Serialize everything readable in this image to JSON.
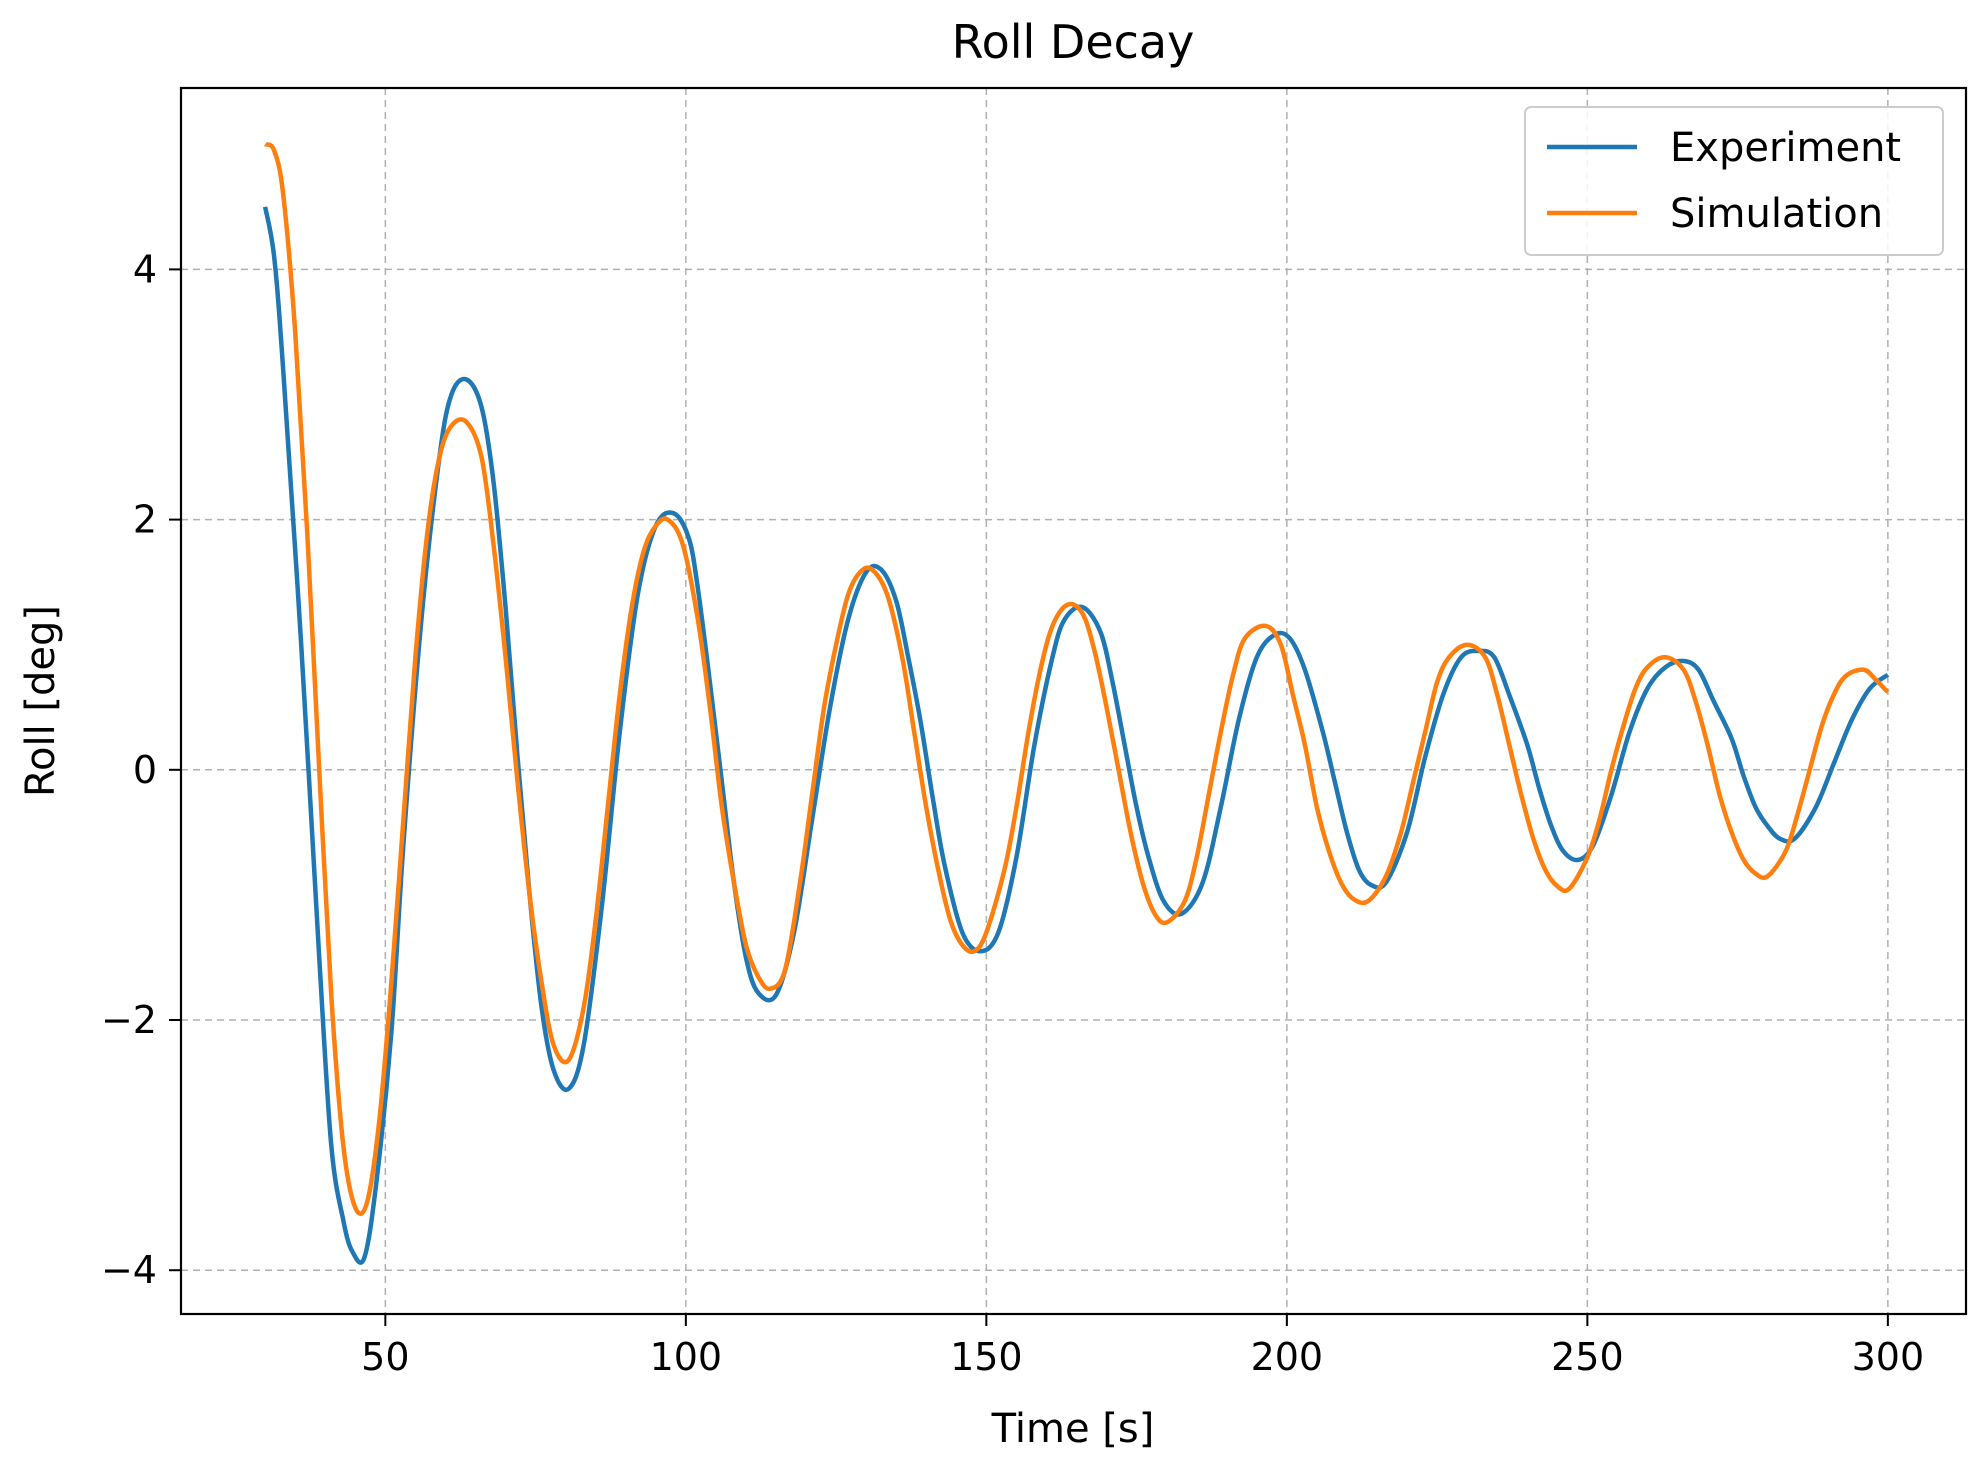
{
  "chart_data": {
    "type": "line",
    "title": "Roll Decay",
    "xlabel": "Time [s]",
    "ylabel": "Roll [deg]",
    "xlim": [
      16,
      313
    ],
    "ylim": [
      -4.35,
      5.45
    ],
    "xticks": [
      50,
      100,
      150,
      200,
      250,
      300
    ],
    "yticks": [
      -4,
      -2,
      0,
      2,
      4
    ],
    "ytick_labels": [
      "−4",
      "−2",
      "0",
      "2",
      "4"
    ],
    "grid": true,
    "legend_position": "top-right",
    "series": [
      {
        "name": "Experiment",
        "color": "#1f77b4",
        "x": [
          30,
          31.5,
          33,
          36,
          39,
          41,
          43,
          44.5,
          46.5,
          48.5,
          51,
          53,
          56,
          59,
          61,
          63.5,
          66,
          68,
          70,
          72,
          74,
          76,
          78,
          80.5,
          83,
          86,
          89,
          92,
          95,
          98,
          100.5,
          102,
          104,
          106,
          108,
          110,
          112,
          115,
          118,
          121,
          124,
          127,
          130,
          132.5,
          135,
          137,
          139,
          141,
          143,
          146,
          149,
          152,
          155,
          158,
          161,
          163,
          166,
          169,
          171,
          173,
          175,
          177,
          179.5,
          182.5,
          186,
          189,
          192,
          195,
          198,
          200.5,
          203,
          206,
          208,
          210,
          212,
          214,
          216.5,
          220,
          223,
          226,
          229,
          232,
          234.5,
          237,
          240,
          242,
          244,
          246,
          248.5,
          251,
          254,
          257,
          260,
          263,
          266,
          268.5,
          271,
          274,
          276,
          278,
          280,
          282,
          284.5,
          288,
          291,
          294,
          297,
          300
        ],
        "y": [
          4.5,
          4.1,
          3.2,
          1.0,
          -1.5,
          -3.0,
          -3.6,
          -3.85,
          -3.9,
          -3.3,
          -2.1,
          -0.6,
          1.2,
          2.5,
          3.0,
          3.12,
          2.9,
          2.3,
          1.3,
          0.1,
          -1.0,
          -1.9,
          -2.4,
          -2.55,
          -2.2,
          -1.1,
          0.3,
          1.4,
          1.95,
          2.05,
          1.85,
          1.45,
          0.7,
          -0.1,
          -0.9,
          -1.5,
          -1.78,
          -1.8,
          -1.3,
          -0.4,
          0.5,
          1.2,
          1.58,
          1.6,
          1.35,
          0.9,
          0.4,
          -0.2,
          -0.75,
          -1.3,
          -1.45,
          -1.3,
          -0.7,
          0.2,
          0.9,
          1.2,
          1.3,
          1.1,
          0.7,
          0.2,
          -0.3,
          -0.7,
          -1.05,
          -1.15,
          -0.9,
          -0.3,
          0.4,
          0.9,
          1.08,
          1.05,
          0.8,
          0.3,
          -0.1,
          -0.5,
          -0.8,
          -0.92,
          -0.9,
          -0.5,
          0.1,
          0.6,
          0.9,
          0.95,
          0.9,
          0.6,
          0.2,
          -0.15,
          -0.45,
          -0.65,
          -0.72,
          -0.6,
          -0.2,
          0.3,
          0.65,
          0.82,
          0.87,
          0.8,
          0.55,
          0.25,
          -0.05,
          -0.3,
          -0.45,
          -0.55,
          -0.55,
          -0.3,
          0.05,
          0.4,
          0.65,
          0.76
        ]
      },
      {
        "name": "Simulation",
        "color": "#ff7f0e",
        "x": [
          30,
          31.5,
          33,
          35,
          37,
          39,
          41,
          43,
          45,
          47,
          49,
          51,
          53,
          55,
          57,
          59,
          61,
          63.5,
          66,
          68,
          70,
          72,
          74,
          76,
          78,
          80.5,
          83,
          85,
          87,
          89,
          91,
          93,
          95,
          97,
          99.5,
          102,
          104,
          106,
          108,
          110,
          112,
          114,
          116.5,
          119,
          121,
          123,
          125,
          127,
          129,
          131,
          133.5,
          136,
          138,
          140,
          142,
          144,
          146,
          148,
          150,
          153,
          155,
          157,
          159,
          161,
          163.5,
          166,
          168,
          170,
          172,
          174,
          176,
          178,
          180,
          183,
          185,
          187,
          189,
          191,
          193,
          196.5,
          199,
          201,
          203,
          205,
          207,
          209,
          211,
          213.5,
          216.5,
          219,
          221,
          223,
          225,
          227,
          230,
          233,
          235,
          237,
          239,
          241,
          243,
          245,
          247,
          250,
          252,
          254,
          256,
          258,
          260,
          263,
          266,
          268,
          270,
          272,
          274,
          276,
          278,
          280,
          283,
          285,
          287,
          289,
          291,
          293,
          296,
          298,
          300
        ],
        "y": [
          5.0,
          4.95,
          4.6,
          3.5,
          1.9,
          0.0,
          -1.8,
          -3.0,
          -3.5,
          -3.45,
          -2.8,
          -1.7,
          -0.4,
          0.9,
          1.9,
          2.5,
          2.75,
          2.78,
          2.5,
          1.8,
          0.9,
          -0.1,
          -1.0,
          -1.7,
          -2.2,
          -2.32,
          -1.9,
          -1.2,
          -0.3,
          0.6,
          1.3,
          1.75,
          1.95,
          2.0,
          1.8,
          1.2,
          0.5,
          -0.3,
          -0.9,
          -1.4,
          -1.65,
          -1.75,
          -1.6,
          -0.9,
          -0.2,
          0.5,
          1.0,
          1.4,
          1.58,
          1.6,
          1.4,
          0.9,
          0.3,
          -0.3,
          -0.8,
          -1.2,
          -1.4,
          -1.45,
          -1.3,
          -0.8,
          -0.3,
          0.3,
          0.8,
          1.15,
          1.32,
          1.25,
          0.95,
          0.5,
          0.0,
          -0.5,
          -0.9,
          -1.15,
          -1.22,
          -1.05,
          -0.7,
          -0.2,
          0.3,
          0.75,
          1.05,
          1.15,
          1.0,
          0.6,
          0.2,
          -0.3,
          -0.65,
          -0.9,
          -1.03,
          -1.05,
          -0.85,
          -0.5,
          -0.1,
          0.3,
          0.7,
          0.9,
          1.0,
          0.9,
          0.6,
          0.2,
          -0.2,
          -0.55,
          -0.8,
          -0.93,
          -0.95,
          -0.7,
          -0.4,
          0.0,
          0.35,
          0.65,
          0.82,
          0.9,
          0.8,
          0.55,
          0.2,
          -0.2,
          -0.5,
          -0.72,
          -0.83,
          -0.85,
          -0.65,
          -0.35,
          0.0,
          0.35,
          0.6,
          0.75,
          0.8,
          0.72,
          0.62
        ]
      }
    ]
  }
}
